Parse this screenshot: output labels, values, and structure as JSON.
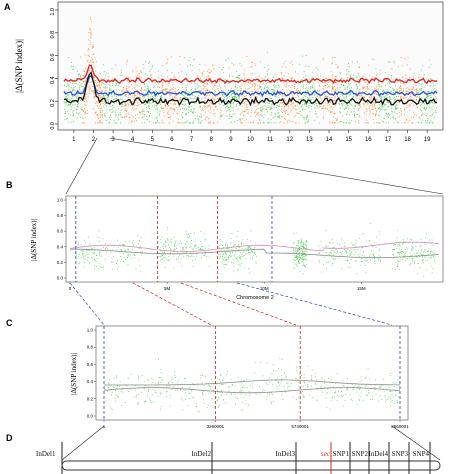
{
  "panel_letters": [
    "A",
    "B",
    "C",
    "D"
  ],
  "colors": {
    "green_points": "#37c93a",
    "orange_points": "#ff7a1a",
    "red_line": "#e41f1f",
    "blue_line": "#2a52d6",
    "black_line": "#111111",
    "pink_line": "#d889c4",
    "grey_line": "#8a8a8a",
    "zoom_red": "#c81f1f",
    "zoom_blue": "#2a3fb8",
    "marker_red": "#d42a2a"
  },
  "chart_data": [
    {
      "panel": "A",
      "type": "scatter",
      "ylabel": "|Δ(SNP index)|",
      "ylim": [
        0,
        1
      ],
      "yticks": [
        "0.0",
        "0.2",
        "0.4",
        "0.6",
        "0.8",
        "1.0"
      ],
      "ytick_values": [
        0,
        0.2,
        0.4,
        0.6,
        0.8,
        1.0
      ],
      "categories": [
        "1",
        "2",
        "3",
        "4",
        "5",
        "6",
        "7",
        "8",
        "9",
        "10",
        "11",
        "12",
        "13",
        "14",
        "15",
        "16",
        "17",
        "18",
        "19"
      ],
      "series_levels": {
        "red": 0.38,
        "blue": 0.27,
        "black": 0.2
      },
      "peak": {
        "chromosome": "2",
        "value": 0.95
      },
      "grid": false
    },
    {
      "panel": "B",
      "type": "scatter",
      "ylabel": "|Δ(SNP index)|",
      "xlabel": "Chromosome 2",
      "ylim": [
        0,
        1
      ],
      "yticks": [
        "0.0",
        "0.2",
        "0.4",
        "0.6",
        "0.8",
        "1.0"
      ],
      "ytick_values": [
        0,
        0.2,
        0.4,
        0.6,
        0.8,
        1.0
      ],
      "xticks": [
        "0",
        "5M",
        "10M",
        "15M"
      ],
      "xtick_values": [
        0,
        5,
        10,
        15
      ],
      "xlim": [
        0,
        19
      ],
      "grid": false
    },
    {
      "panel": "C",
      "type": "scatter",
      "ylabel": "|Δ(SNP index)|",
      "ylim": [
        0,
        1
      ],
      "yticks": [
        "0.0",
        "0.2",
        "0.4",
        "0.6",
        "0.8",
        "1.0"
      ],
      "ytick_values": [
        0,
        0.2,
        0.4,
        0.6,
        0.8,
        1.0
      ],
      "xticks": [
        "1",
        "3260001",
        "5740001",
        "8660001"
      ],
      "xtick_values": [
        1,
        3260001,
        5740001,
        8660001
      ],
      "xlim": [
        1,
        8660001
      ],
      "grid": false
    }
  ],
  "marker_panel": {
    "labels": [
      "InDel1",
      "InDel2",
      "InDel3",
      "sec",
      "SNP1",
      "SNP2",
      "InDel4",
      "SNP3",
      "SNP4"
    ]
  }
}
